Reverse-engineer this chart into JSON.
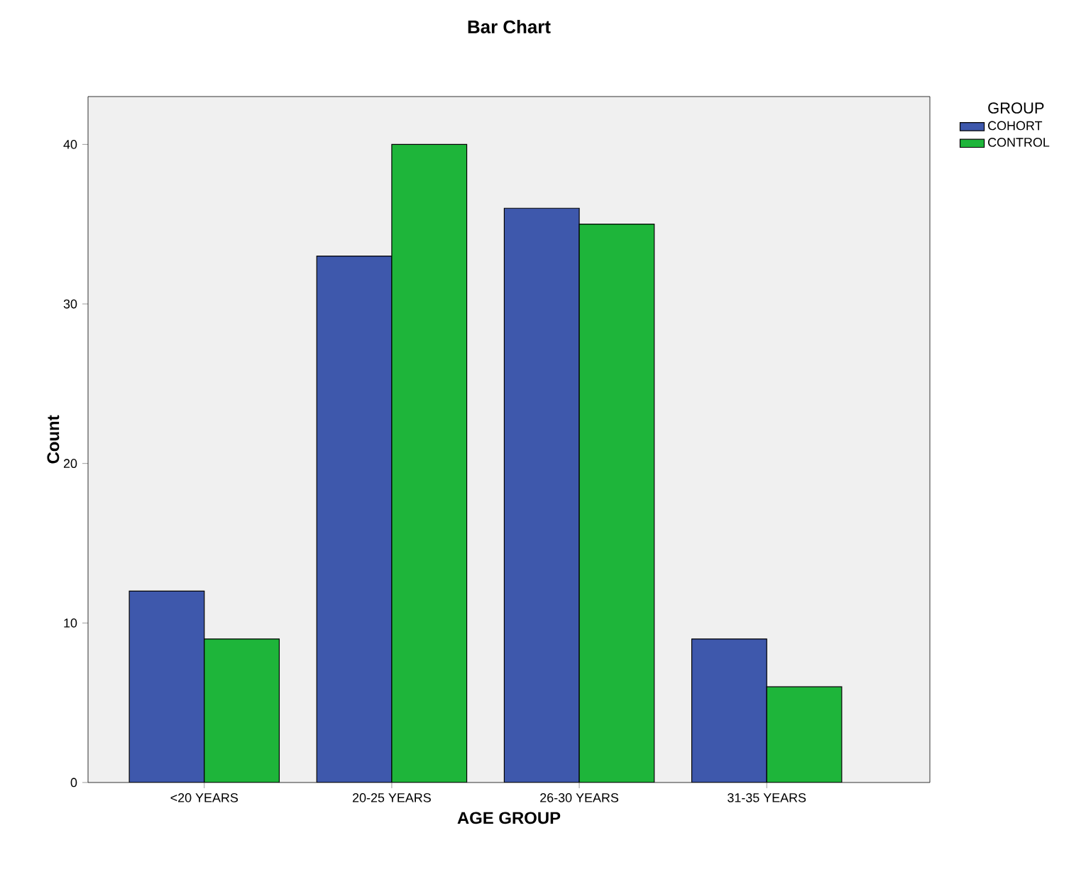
{
  "chart_data": {
    "type": "bar",
    "title": "Bar Chart",
    "xlabel": "AGE GROUP",
    "ylabel": "Count",
    "legend_title": "GROUP",
    "legend": "right",
    "categories": [
      "<20 YEARS",
      "20-25 YEARS",
      "26-30 YEARS",
      "31-35 YEARS"
    ],
    "series": [
      {
        "name": "COHORT",
        "color": "#3e58ac",
        "values": [
          12,
          33,
          36,
          9
        ]
      },
      {
        "name": "CONTROL",
        "color": "#1eb53a",
        "values": [
          9,
          40,
          35,
          6
        ]
      }
    ],
    "ylim": [
      0,
      43
    ],
    "yticks": [
      0,
      10,
      20,
      30,
      40
    ],
    "grid": false
  }
}
